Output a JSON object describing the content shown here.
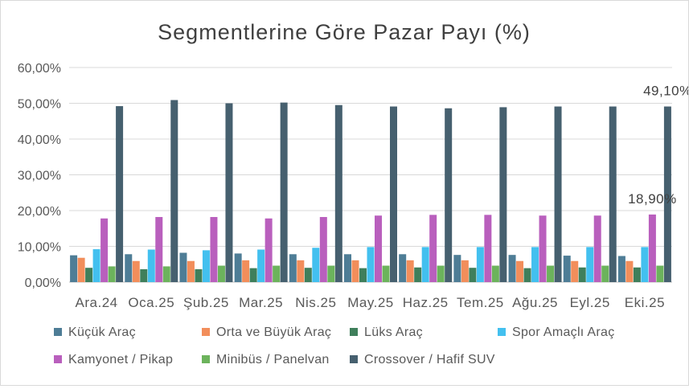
{
  "chart_data": {
    "type": "bar",
    "title": "Segmentlerine Göre Pazar Payı (%)",
    "xlabel": "",
    "ylabel": "",
    "ylim": [
      0,
      60
    ],
    "y_ticks": [
      "0,00%",
      "10,00%",
      "20,00%",
      "30,00%",
      "40,00%",
      "50,00%",
      "60,00%"
    ],
    "grid": true,
    "legend_position": "bottom",
    "categories": [
      "Ara.24",
      "Oca.25",
      "Şub.25",
      "Mar.25",
      "Nis.25",
      "May.25",
      "Haz.25",
      "Tem.25",
      "Ağu.25",
      "Eyl.25",
      "Eki.25"
    ],
    "series": [
      {
        "name": "Küçük Araç",
        "color": "#4e7d96",
        "values": [
          7.5,
          7.8,
          8.2,
          8.0,
          7.8,
          7.8,
          7.8,
          7.6,
          7.6,
          7.4,
          7.3
        ]
      },
      {
        "name": "Orta ve Büyük Araç",
        "color": "#f28e5b",
        "values": [
          6.8,
          5.9,
          5.9,
          6.1,
          6.1,
          6.1,
          6.1,
          6.1,
          5.9,
          5.9,
          5.9
        ]
      },
      {
        "name": "Lüks Araç",
        "color": "#3f7f5b",
        "values": [
          4.0,
          3.6,
          3.6,
          3.9,
          4.0,
          3.9,
          4.1,
          4.0,
          3.9,
          4.1,
          4.1
        ]
      },
      {
        "name": "Spor Amaçlı Araç",
        "color": "#43c0ef",
        "values": [
          9.2,
          9.1,
          8.9,
          9.1,
          9.6,
          9.8,
          9.8,
          9.8,
          9.8,
          9.8,
          9.8
        ]
      },
      {
        "name": "Kamyonet / Pikap",
        "color": "#b95fbd",
        "values": [
          17.8,
          18.2,
          18.2,
          17.8,
          18.2,
          18.6,
          18.8,
          18.8,
          18.6,
          18.6,
          18.9
        ]
      },
      {
        "name": "Minibüs / Panelvan",
        "color": "#6cb35c",
        "values": [
          4.4,
          4.4,
          4.6,
          4.6,
          4.6,
          4.6,
          4.6,
          4.6,
          4.6,
          4.6,
          4.6
        ]
      },
      {
        "name": "Crossover / Hafif SUV",
        "color": "#46606f",
        "values": [
          49.2,
          50.9,
          50.0,
          50.2,
          49.5,
          49.1,
          48.6,
          48.9,
          49.1,
          49.1,
          49.1
        ]
      }
    ],
    "annotations": [
      {
        "text": "49,10%",
        "category": "Eki.25",
        "series": "Crossover / Hafif SUV"
      },
      {
        "text": "18,90%",
        "category": "Eki.25",
        "series": "Kamyonet / Pikap"
      }
    ]
  }
}
